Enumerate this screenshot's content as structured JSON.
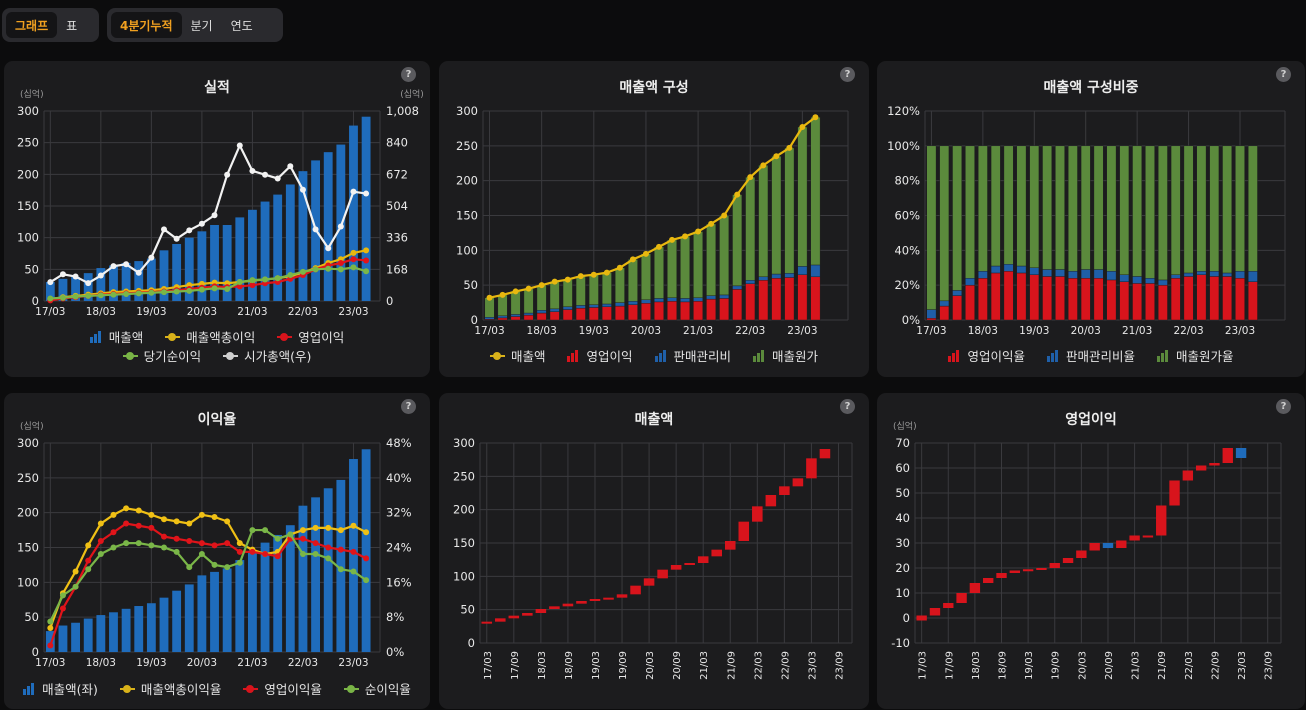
{
  "toolbar": {
    "view_tabs": [
      {
        "label": "그래프",
        "active": true
      },
      {
        "label": "표",
        "active": false
      }
    ],
    "period_tabs": [
      {
        "label": "4분기누적",
        "active": true
      },
      {
        "label": "분기",
        "active": false
      },
      {
        "label": "연도",
        "active": false
      }
    ]
  },
  "panels": {
    "p1": {
      "title": "실적",
      "help": "?",
      "unit_left": "(십억)",
      "unit_right": "(십억)",
      "legend": [
        {
          "label": "매출액",
          "kind": "bar",
          "color": "#1f6cbc"
        },
        {
          "label": "매출액총이익",
          "kind": "line",
          "color": "#d9b21a"
        },
        {
          "label": "영업이익",
          "kind": "line",
          "color": "#d8141c"
        },
        {
          "label": "당기순이익",
          "kind": "line",
          "color": "#79b446"
        },
        {
          "label": "시가총액(우)",
          "kind": "line",
          "color": "#cfcfcf"
        }
      ]
    },
    "p2": {
      "title": "매출액 구성",
      "help": "?",
      "legend": [
        {
          "label": "매출액",
          "kind": "line",
          "color": "#d9b21a"
        },
        {
          "label": "영업이익",
          "kind": "bar",
          "color": "#d8141c"
        },
        {
          "label": "판매관리비",
          "kind": "bar",
          "color": "#1f5fa8"
        },
        {
          "label": "매출원가",
          "kind": "bar",
          "color": "#5b8a3c"
        }
      ]
    },
    "p3": {
      "title": "매출액 구성비중",
      "help": "?",
      "legend": [
        {
          "label": "영업이익율",
          "kind": "bar",
          "color": "#d8141c"
        },
        {
          "label": "판매관리비율",
          "kind": "bar",
          "color": "#1f5fa8"
        },
        {
          "label": "매출원가율",
          "kind": "bar",
          "color": "#5b8a3c"
        }
      ]
    },
    "p4": {
      "title": "이익율",
      "help": "?",
      "unit_left": "(십억)",
      "legend": [
        {
          "label": "매출액(좌)",
          "kind": "bar",
          "color": "#1f6cbc"
        },
        {
          "label": "매출액총이익율",
          "kind": "line",
          "color": "#d9b21a"
        },
        {
          "label": "영업이익율",
          "kind": "line",
          "color": "#d8141c"
        },
        {
          "label": "순이익율",
          "kind": "line",
          "color": "#79b446"
        }
      ]
    },
    "p5": {
      "title": "매출액",
      "help": "?"
    },
    "p6": {
      "title": "영업이익",
      "help": "?",
      "unit_left": "(십억)"
    }
  },
  "chart_data": [
    {
      "id": "p1",
      "type": "bar+line",
      "title": "실적",
      "x_ticks": [
        "17/03",
        "18/03",
        "19/03",
        "20/03",
        "21/03",
        "22/03",
        "23/03"
      ],
      "y_ticks_left": [
        "0",
        "50",
        "100",
        "150",
        "200",
        "250",
        "300"
      ],
      "y_ticks_right": [
        "0",
        "168",
        "336",
        "504",
        "672",
        "840",
        "1,008"
      ],
      "ylim": [
        0,
        300
      ],
      "y2lim": [
        0,
        1008
      ],
      "series": [
        {
          "name": "매출액",
          "type": "bar",
          "values": [
            30,
            35,
            38,
            44,
            52,
            56,
            60,
            63,
            67,
            80,
            90,
            100,
            110,
            120,
            120,
            132,
            144,
            157,
            168,
            184,
            205,
            222,
            235,
            247,
            277,
            291
          ]
        },
        {
          "name": "매출액총이익",
          "type": "line",
          "values": [
            3,
            6,
            8,
            10,
            12,
            14,
            15,
            16,
            17,
            19,
            22,
            25,
            27,
            29,
            28,
            30,
            32,
            34,
            36,
            39,
            45,
            52,
            60,
            66,
            76,
            80
          ]
        },
        {
          "name": "영업이익",
          "type": "line",
          "values": [
            1,
            4,
            6,
            8,
            10,
            11,
            12,
            13,
            14,
            15,
            17,
            19,
            21,
            23,
            22,
            23,
            25,
            28,
            30,
            35,
            41,
            50,
            56,
            60,
            66,
            64
          ]
        },
        {
          "name": "당기순이익",
          "type": "line",
          "values": [
            4,
            5,
            7,
            8,
            9,
            10,
            11,
            12,
            13,
            14,
            15,
            16,
            18,
            20,
            19,
            30,
            33,
            34,
            36,
            41,
            46,
            50,
            51,
            50,
            53,
            47
          ]
        },
        {
          "name": "시가총액(우)",
          "type": "line",
          "axis": "right",
          "values": [
            100,
            142,
            130,
            95,
            135,
            185,
            195,
            150,
            230,
            380,
            330,
            375,
            410,
            455,
            670,
            825,
            690,
            670,
            650,
            715,
            590,
            380,
            280,
            395,
            580,
            570
          ]
        }
      ]
    },
    {
      "id": "p2",
      "type": "stacked-bar+line",
      "title": "매출액 구성",
      "x_ticks": [
        "17/03",
        "18/03",
        "19/03",
        "20/03",
        "21/03",
        "22/03",
        "23/03"
      ],
      "y_ticks": [
        "0",
        "50",
        "100",
        "150",
        "200",
        "250",
        "300"
      ],
      "ylim": [
        0,
        300
      ],
      "series": [
        {
          "name": "매출액",
          "type": "line",
          "values": [
            32,
            36,
            41,
            45,
            50,
            55,
            58,
            63,
            65,
            68,
            75,
            87,
            95,
            105,
            115,
            120,
            127,
            138,
            150,
            180,
            205,
            222,
            235,
            247,
            277,
            291
          ]
        },
        {
          "name": "영업이익",
          "type": "bar",
          "values": [
            1,
            3,
            5,
            7,
            10,
            12,
            15,
            17,
            18,
            19,
            20,
            22,
            24,
            26,
            27,
            26,
            27,
            30,
            31,
            44,
            52,
            57,
            60,
            61,
            65,
            62
          ]
        },
        {
          "name": "판매관리비",
          "type": "bar",
          "values": [
            3,
            3,
            3,
            3,
            4,
            4,
            4,
            4,
            4,
            4,
            5,
            5,
            5,
            5,
            5,
            5,
            5,
            5,
            5,
            5,
            5,
            5,
            6,
            6,
            12,
            17
          ]
        },
        {
          "name": "매출원가",
          "type": "bar",
          "values": [
            28,
            30,
            33,
            35,
            36,
            39,
            39,
            42,
            43,
            45,
            50,
            60,
            66,
            74,
            83,
            89,
            95,
            103,
            114,
            131,
            148,
            160,
            169,
            180,
            200,
            212
          ]
        }
      ]
    },
    {
      "id": "p3",
      "type": "stacked-bar-percent",
      "title": "매출액 구성비중",
      "x_ticks": [
        "17/03",
        "18/03",
        "19/03",
        "20/03",
        "21/03",
        "22/03",
        "23/03"
      ],
      "y_ticks": [
        "0%",
        "20%",
        "40%",
        "60%",
        "80%",
        "100%",
        "120%"
      ],
      "ylim": [
        0,
        120
      ],
      "series": [
        {
          "name": "영업이익율",
          "type": "bar",
          "values": [
            1,
            8,
            14,
            20,
            24,
            27,
            28,
            27,
            26,
            25,
            25,
            24,
            24,
            24,
            23,
            22,
            21,
            21,
            20,
            24,
            25,
            26,
            25,
            25,
            24,
            22
          ]
        },
        {
          "name": "판매관리비율",
          "type": "bar",
          "values": [
            5,
            3,
            3,
            4,
            4,
            4,
            4,
            4,
            4,
            4,
            4,
            4,
            5,
            5,
            5,
            4,
            4,
            3,
            3,
            2,
            2,
            2,
            3,
            2,
            4,
            6
          ]
        },
        {
          "name": "매출원가율",
          "type": "bar",
          "values": [
            94,
            89,
            83,
            76,
            72,
            69,
            68,
            69,
            70,
            71,
            71,
            72,
            71,
            71,
            72,
            74,
            75,
            76,
            77,
            74,
            73,
            72,
            72,
            73,
            72,
            72
          ]
        }
      ]
    },
    {
      "id": "p4",
      "type": "bar+line",
      "title": "이익율",
      "x_ticks": [
        "17/03",
        "18/03",
        "19/03",
        "20/03",
        "21/03",
        "22/03",
        "23/03"
      ],
      "y_ticks_left": [
        "0",
        "50",
        "100",
        "150",
        "200",
        "250",
        "300"
      ],
      "y_ticks_right": [
        "0%",
        "8%",
        "16%",
        "24%",
        "32%",
        "40%",
        "48%"
      ],
      "ylim": [
        0,
        300
      ],
      "y2lim": [
        0,
        48
      ],
      "series": [
        {
          "name": "매출액(좌)",
          "type": "bar",
          "values": [
            30,
            38,
            42,
            48,
            53,
            57,
            62,
            66,
            70,
            78,
            88,
            97,
            110,
            115,
            120,
            132,
            144,
            157,
            168,
            182,
            210,
            222,
            235,
            247,
            277,
            291
          ]
        },
        {
          "name": "매출액총이익율",
          "type": "line",
          "values": [
            5.5,
            13.5,
            18.5,
            24.5,
            29.5,
            31.5,
            33,
            32.5,
            31.5,
            30.5,
            30.0,
            29.5,
            31.5,
            31.0,
            30.0,
            25.0,
            23.5,
            22.5,
            23.0,
            27.0,
            28.0,
            28.5,
            28.5,
            28.0,
            29.0,
            27.5
          ]
        },
        {
          "name": "영업이익율",
          "type": "line",
          "values": [
            1.5,
            10,
            15,
            21,
            25.5,
            27.5,
            29.5,
            29,
            28.5,
            26.5,
            26,
            25.5,
            25,
            24.5,
            25,
            23,
            23,
            22.5,
            22,
            26,
            26,
            25,
            24,
            23.5,
            23,
            21.5
          ]
        },
        {
          "name": "순이익율",
          "type": "line",
          "values": [
            7,
            13,
            15,
            19,
            22.5,
            24,
            25,
            25,
            24.5,
            24,
            23,
            19.5,
            22.5,
            20,
            19.5,
            20.5,
            28,
            28,
            26,
            27,
            22.5,
            22.5,
            21.5,
            19,
            18.5,
            16.5
          ]
        }
      ]
    },
    {
      "id": "p5",
      "type": "waterfall",
      "title": "매출액",
      "x_ticks": [
        "17/03",
        "17/09",
        "18/03",
        "18/09",
        "19/03",
        "19/09",
        "20/03",
        "20/09",
        "21/03",
        "21/09",
        "22/03",
        "22/09",
        "23/03",
        "23/09"
      ],
      "y_ticks": [
        "0",
        "50",
        "100",
        "150",
        "200",
        "250",
        "300"
      ],
      "ylim": [
        0,
        300
      ],
      "steps": [
        [
          30,
          32
        ],
        [
          32,
          37
        ],
        [
          37,
          41
        ],
        [
          41,
          45
        ],
        [
          45,
          51
        ],
        [
          51,
          55
        ],
        [
          55,
          59
        ],
        [
          59,
          63
        ],
        [
          63,
          66
        ],
        [
          66,
          68
        ],
        [
          68,
          73
        ],
        [
          73,
          86
        ],
        [
          86,
          97
        ],
        [
          97,
          110
        ],
        [
          110,
          117
        ],
        [
          117,
          120
        ],
        [
          120,
          130
        ],
        [
          130,
          140
        ],
        [
          140,
          153
        ],
        [
          153,
          182
        ],
        [
          182,
          205
        ],
        [
          205,
          222
        ],
        [
          222,
          235
        ],
        [
          235,
          247
        ],
        [
          247,
          277
        ],
        [
          277,
          291
        ]
      ]
    },
    {
      "id": "p6",
      "type": "waterfall",
      "title": "영업이익",
      "x_ticks": [
        "17/03",
        "17/09",
        "18/03",
        "18/09",
        "19/03",
        "19/09",
        "20/03",
        "20/09",
        "21/03",
        "21/09",
        "22/03",
        "22/09",
        "23/03",
        "23/09"
      ],
      "y_ticks": [
        "-10",
        "0",
        "10",
        "20",
        "30",
        "40",
        "50",
        "60",
        "70"
      ],
      "ylim": [
        -10,
        70
      ],
      "steps": [
        [
          -1,
          1
        ],
        [
          1,
          4
        ],
        [
          4,
          6
        ],
        [
          6,
          10
        ],
        [
          10,
          14
        ],
        [
          14,
          16
        ],
        [
          16,
          18
        ],
        [
          18,
          19
        ],
        [
          19,
          19.5
        ],
        [
          19.5,
          20
        ],
        [
          20,
          22
        ],
        [
          22,
          24
        ],
        [
          24,
          27
        ],
        [
          27,
          30
        ],
        [
          30,
          28
        ],
        [
          28,
          31
        ],
        [
          31,
          33
        ],
        [
          33,
          33
        ],
        [
          33,
          45
        ],
        [
          45,
          55
        ],
        [
          55,
          59
        ],
        [
          59,
          61
        ],
        [
          61,
          62
        ],
        [
          62,
          68
        ],
        [
          68,
          64
        ]
      ]
    }
  ]
}
